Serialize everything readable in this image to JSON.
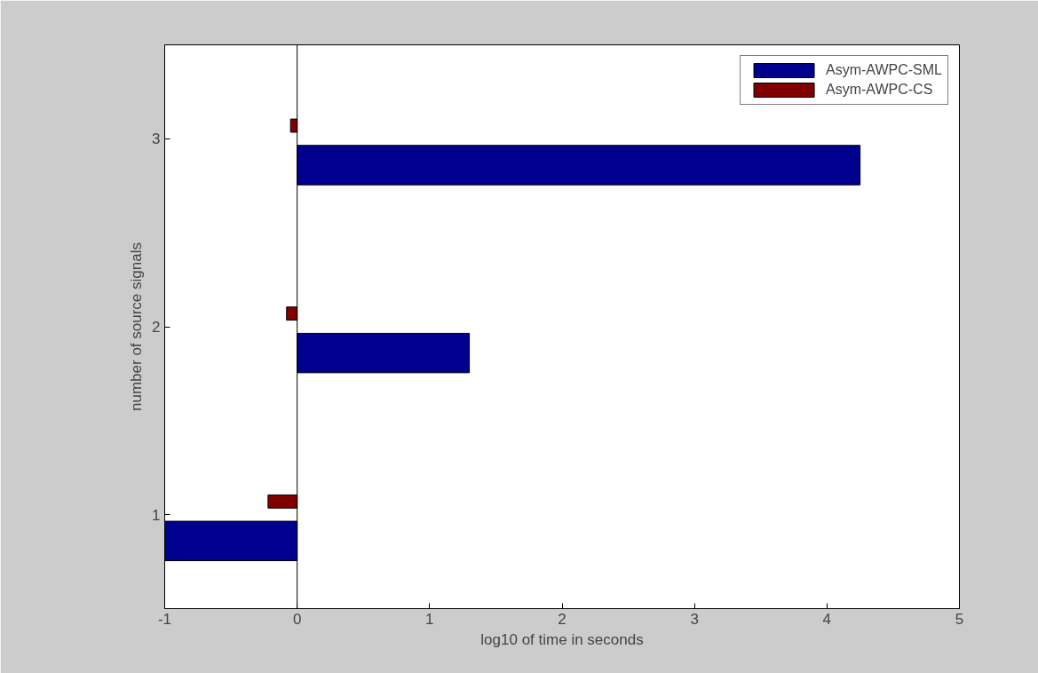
{
  "chart_data": {
    "type": "bar",
    "orientation": "horizontal",
    "xlabel": "log10 of time in seconds",
    "ylabel": "number of source signals",
    "categories": [
      "3",
      "2",
      "1"
    ],
    "series": [
      {
        "name": "Asym-AWPC-SML",
        "color": "#00008f",
        "values": [
          4.25,
          1.3,
          -1
        ]
      },
      {
        "name": "Asym-AWPC-CS",
        "color": "#800000",
        "values": [
          -0.05,
          -0.08,
          -0.22
        ]
      }
    ],
    "xlim": [
      -1,
      5
    ],
    "xticks": [
      -1,
      0,
      1,
      2,
      3,
      4,
      5
    ],
    "ref_lines": [
      {
        "axis": "x",
        "value": 0,
        "color": "#000000"
      }
    ],
    "legend": "top right",
    "grid": false
  }
}
